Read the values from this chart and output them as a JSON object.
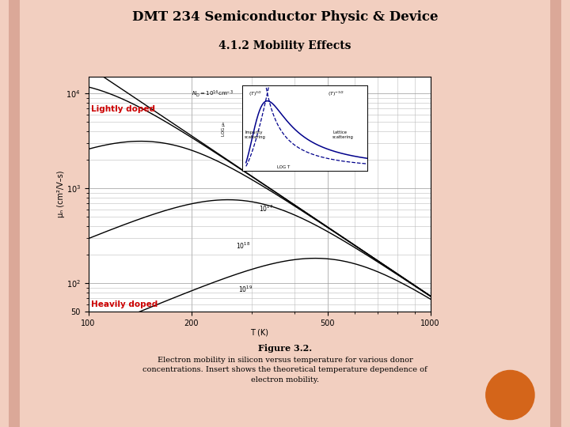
{
  "title": "DMT 234 Semiconductor Physic & Device",
  "subtitle": "4.1.2 Mobility Effects",
  "fig_caption_title": "Figure 3.2.",
  "fig_caption": "Electron mobility in silicon versus temperature for various donor\nconcentrations. Insert shows the theoretical temperature dependence of\nelectron mobility.",
  "xlabel": "T (K)",
  "ylabel": "μₙ (cm²/V–s)",
  "background_color": "#f2cfc0",
  "plot_bg": "#ffffff",
  "title_color": "#000000",
  "subtitle_color": "#000000",
  "lightly_doped_color": "#cc0000",
  "heavily_doped_color": "#cc0000",
  "line_color": "#000000",
  "inset_line_color": "#00008b",
  "orange_circle_color": "#d4651a",
  "border_color": "#dba898",
  "xlim": [
    100,
    1000
  ],
  "ylim_low": 50,
  "ylim_high": 15000
}
